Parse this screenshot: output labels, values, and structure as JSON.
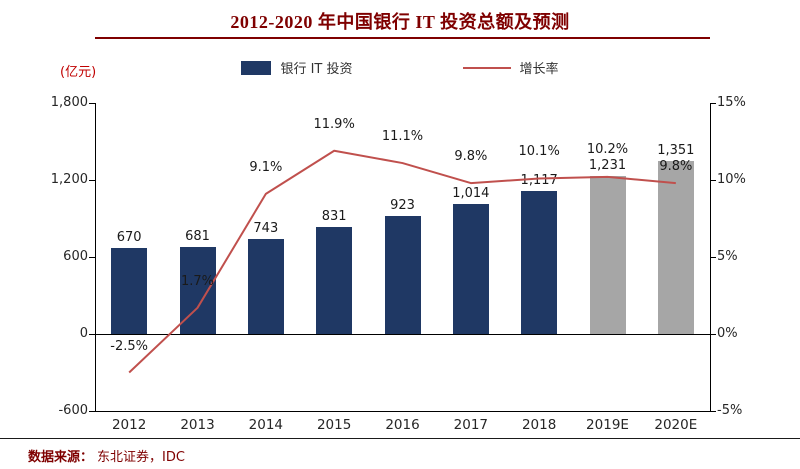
{
  "source": {
    "prefix": "数据来源：",
    "text": "东北证券，IDC"
  },
  "colors": {
    "bar": "#1f3864",
    "forecast_bar": "#a6a6a6",
    "line": "#c0504d",
    "title": "#7f0000",
    "unit_label_red": "#c00000"
  },
  "chart_data": {
    "type": "bar",
    "title": "2012-2020 年中国银行 IT 投资总额及预测",
    "ylabel_left": "(亿元)",
    "legend_position": "top",
    "grid": false,
    "categories": [
      "2012",
      "2013",
      "2014",
      "2015",
      "2016",
      "2017",
      "2018",
      "2019E",
      "2020E"
    ],
    "series": [
      {
        "name": "银行 IT 投资",
        "type": "bar",
        "axis": "left",
        "values": [
          670,
          681,
          743,
          831,
          923,
          1014,
          1117,
          1231,
          1351
        ],
        "labels": [
          "670",
          "681",
          "743",
          "831",
          "923",
          "1,014",
          "1,117",
          "1,231",
          "1,351"
        ],
        "forecast_from_index": 7
      },
      {
        "name": "增长率",
        "type": "line",
        "axis": "right",
        "values": [
          -2.5,
          1.7,
          9.1,
          11.9,
          11.1,
          9.8,
          10.1,
          10.2,
          9.8
        ],
        "labels": [
          "-2.5%",
          "1.7%",
          "9.1%",
          "11.9%",
          "11.1%",
          "9.8%",
          "10.1%",
          "10.2%",
          "9.8%"
        ]
      }
    ],
    "left_axis": {
      "min": -600,
      "max": 1800,
      "ticks": [
        1800,
        1200,
        600,
        0,
        -600
      ],
      "tick_labels": [
        "1,800",
        "1,200",
        "600",
        "0",
        "-600"
      ]
    },
    "right_axis": {
      "min": -5,
      "max": 15,
      "ticks": [
        15,
        10,
        5,
        0,
        -5
      ],
      "tick_labels": [
        "15%",
        "10%",
        "5%",
        "0%",
        "-5%"
      ]
    }
  }
}
